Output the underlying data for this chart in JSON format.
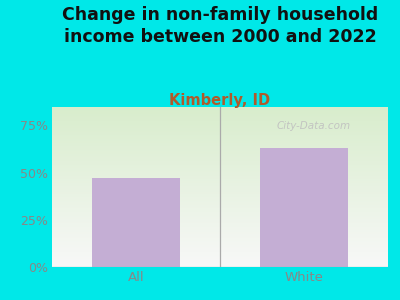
{
  "title": "Change in non-family household\nincome between 2000 and 2022",
  "subtitle": "Kimberly, ID",
  "categories": [
    "All",
    "White"
  ],
  "values": [
    47,
    63
  ],
  "bar_color": "#c4aed4",
  "title_fontsize": 12.5,
  "subtitle_fontsize": 10.5,
  "subtitle_color": "#b05a2a",
  "title_color": "#111111",
  "tick_color": "#888888",
  "yticks": [
    0,
    25,
    50,
    75
  ],
  "ylim": [
    0,
    85
  ],
  "background_outer": "#00e8e8",
  "background_plot_topleft": "#d8edcc",
  "background_plot_bottomright": "#f8f8f8",
  "separator_color": "#aaaaaa",
  "watermark": "City-Data.com"
}
